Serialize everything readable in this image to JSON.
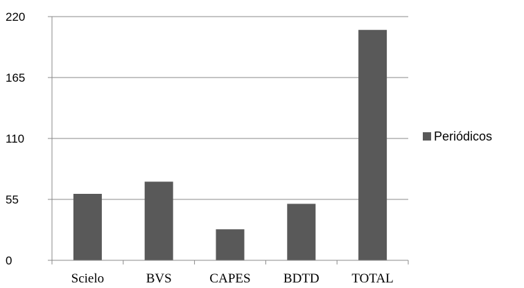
{
  "chart_data": {
    "type": "bar",
    "categories": [
      "Scielo",
      "BVS",
      "CAPES",
      "BDTD",
      "TOTAL"
    ],
    "series": [
      {
        "name": "Periódicos",
        "values": [
          60,
          71,
          28,
          51,
          208
        ],
        "color": "#595959"
      }
    ],
    "ylim": [
      0,
      220
    ],
    "yticks": [
      "0",
      "55",
      "110",
      "165",
      "220"
    ],
    "grid": true,
    "legend_position": "right"
  }
}
